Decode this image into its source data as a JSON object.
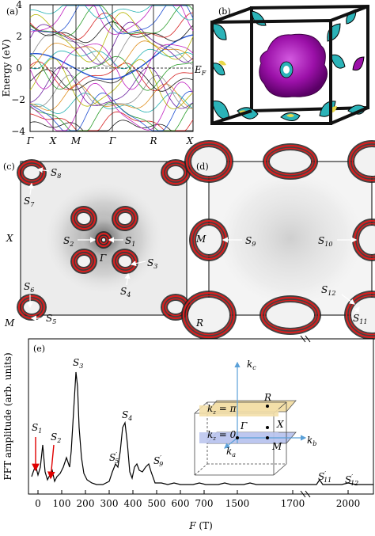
{
  "panels": {
    "a": {
      "label": "(a)",
      "ylabel": "Energy (eV)",
      "yticks": [
        "4",
        "2",
        "0",
        "−2",
        "−4"
      ],
      "kpath": [
        "Γ",
        "X",
        "M",
        "Γ",
        "R",
        "X"
      ],
      "fermi_label": "E",
      "fermi_sub": "F"
    },
    "b": {
      "label": "(b)"
    },
    "c": {
      "label": "(c)",
      "side_top": "X",
      "side_bottom": "M",
      "gamma": "Γ",
      "pockets": [
        "S8",
        "S7",
        "S2",
        "S1",
        "S3",
        "S4",
        "S6",
        "S5"
      ]
    },
    "d": {
      "label": "(d)",
      "side_top": "M",
      "side_bottom": "R",
      "pockets": [
        "S9",
        "S10",
        "S12",
        "S11"
      ]
    },
    "e": {
      "label": "(e)",
      "ylabel": "FFT amplitude (arb. units)",
      "xlabel_var": "F",
      "xlabel_unit": " (T)",
      "xticks": [
        "0",
        "100",
        "200",
        "300",
        "400",
        "500",
        "600",
        "700",
        "1500",
        "1700",
        "2000"
      ],
      "peaks": [
        {
          "name": "S",
          "sub": "1",
          "prime": ""
        },
        {
          "name": "S",
          "sub": "2",
          "prime": ""
        },
        {
          "name": "S",
          "sub": "3",
          "prime": ""
        },
        {
          "name": "S",
          "sub": "4",
          "prime": ""
        },
        {
          "name": "S",
          "sub": "5",
          "prime": "′"
        },
        {
          "name": "S",
          "sub": "9",
          "prime": "′"
        },
        {
          "name": "S",
          "sub": "11",
          "prime": "′"
        },
        {
          "name": "S",
          "sub": "12",
          "prime": "′"
        }
      ],
      "inset": {
        "kc": "k",
        "kc_sub": "c",
        "kb": "k",
        "kb_sub": "b",
        "ka": "k",
        "ka_sub": "a",
        "plane_top": "k₂ = π",
        "plane_top_k": "k",
        "plane_top_sub": "z",
        "plane_top_eq": " = π",
        "plane_mid_k": "k",
        "plane_mid_sub": "z",
        "plane_mid_eq": " = 0",
        "R": "R",
        "X": "X",
        "M": "M",
        "Gamma": "Γ"
      }
    }
  },
  "colors": {
    "pocket_red": "#d62020",
    "isosurface": "#9b10a8",
    "cyan": "#2bb3b8",
    "yellow": "#e8d84a",
    "arrow_red": "#e00000",
    "inset_blue": "#5aa0d8",
    "plane_top_fill": "#f3dfa8",
    "plane_mid_fill": "#bcc6ee"
  }
}
